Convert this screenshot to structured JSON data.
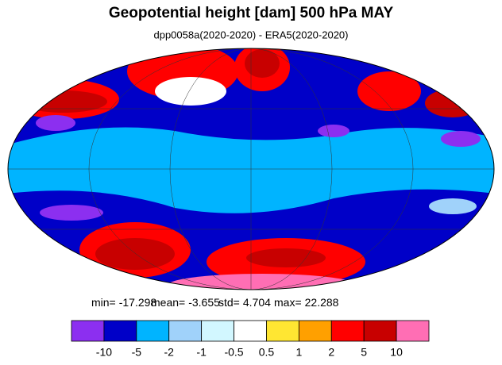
{
  "title": "Geopotential height [dam] 500 hPa MAY",
  "subtitle": "dpp0058a(2020-2020) - ERA5(2020-2020)",
  "stats": [
    {
      "label": "min=",
      "value": -17.298
    },
    {
      "label": "mean=",
      "value": -3.655
    },
    {
      "label": "std=",
      "value": 4.704
    },
    {
      "label": "max=",
      "value": 22.288
    }
  ],
  "colorbar": {
    "levels": [
      -10,
      -5,
      -2,
      -1,
      -0.5,
      0.5,
      1,
      2,
      5,
      10
    ],
    "colors": [
      "#8c2ff0",
      "#0000c8",
      "#00b4ff",
      "#a0d2fa",
      "#d2f7ff",
      "#ffffff",
      "#ffe632",
      "#ffa000",
      "#ff0000",
      "#c80000",
      "#ff6eb4"
    ]
  }
}
